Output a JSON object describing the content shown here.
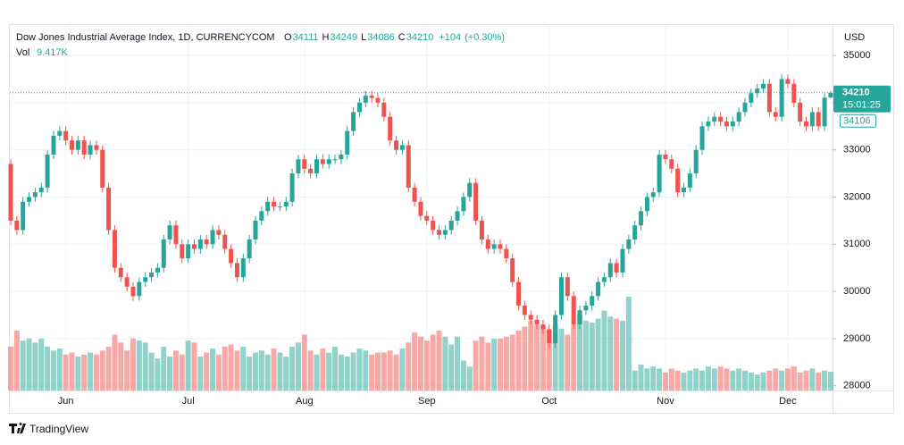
{
  "chart_data": {
    "type": "candlestick",
    "title": "Dow Jones Industrial Average Index, 1D, CURRENCYCOM",
    "ohlc_letters": [
      "O",
      "H",
      "L",
      "C"
    ],
    "change": {
      "value": 104,
      "label": "+104"
    },
    "change_pct": {
      "value": 0.3,
      "label": "(+0.30%)"
    },
    "volume_title": "Vol",
    "volume_label": "9.417K",
    "currency": "USD",
    "countdown": "15:01:25",
    "brand": "TradingView",
    "up_color": "#26a69a",
    "down_color": "#ef5350",
    "grid": true,
    "ylim": [
      27900,
      35570
    ],
    "yticks": [
      28000,
      29000,
      30000,
      31000,
      32000,
      33000,
      34000,
      35000
    ],
    "xticks": [
      {
        "value": 9,
        "label": "Jun"
      },
      {
        "value": 29,
        "label": "Jul"
      },
      {
        "value": 48,
        "label": "Aug"
      },
      {
        "value": 68,
        "label": "Sep"
      },
      {
        "value": 88,
        "label": "Oct"
      },
      {
        "value": 107,
        "label": "Nov"
      },
      {
        "value": 127,
        "label": "Dec"
      }
    ],
    "open": [
      32700,
      31500,
      31300,
      31900,
      32000,
      32100,
      32200,
      32900,
      33300,
      33400,
      33200,
      33000,
      33200,
      32900,
      33100,
      33000,
      32200,
      31300,
      30500,
      30300,
      30100,
      29900,
      30200,
      30300,
      30400,
      30500,
      31100,
      31400,
      31000,
      30700,
      31000,
      30900,
      31100,
      31000,
      31300,
      31200,
      30900,
      30600,
      30300,
      30700,
      31100,
      31500,
      31700,
      31900,
      31800,
      31800,
      31900,
      32500,
      32800,
      32600,
      32500,
      32800,
      32700,
      32800,
      32800,
      32900,
      33400,
      33800,
      34000,
      34150,
      34100,
      34000,
      33700,
      33200,
      33000,
      33100,
      32200,
      31900,
      31600,
      31500,
      31300,
      31200,
      31300,
      31500,
      31700,
      32000,
      32300,
      31500,
      31100,
      30900,
      31000,
      30900,
      30700,
      30200,
      29700,
      29500,
      29400,
      29300,
      29200,
      28900,
      29500,
      30300,
      29900,
      29300,
      29600,
      29700,
      29900,
      30200,
      30300,
      30600,
      30400,
      30900,
      31100,
      31400,
      31700,
      32000,
      32100,
      32900,
      32800,
      32600,
      32100,
      32200,
      32500,
      33000,
      33500,
      33600,
      33700,
      33600,
      33500,
      33600,
      33800,
      34000,
      34200,
      34300,
      34400,
      33800,
      33700,
      34500,
      34400,
      34000,
      33600,
      33500,
      33800,
      33500,
      34111
    ],
    "high": [
      32800,
      31600,
      32000,
      32100,
      32200,
      32300,
      33000,
      33400,
      33500,
      33500,
      33300,
      33300,
      33300,
      33200,
      33200,
      33100,
      32300,
      31400,
      30600,
      30400,
      30200,
      30300,
      30400,
      30500,
      30600,
      31200,
      31500,
      31500,
      31100,
      31100,
      31100,
      31200,
      31200,
      31400,
      31400,
      31300,
      31000,
      30700,
      30800,
      31200,
      31600,
      31800,
      32000,
      32000,
      31900,
      32000,
      32600,
      32900,
      32900,
      32700,
      32900,
      32900,
      32900,
      32900,
      33000,
      33500,
      33900,
      34100,
      34250,
      34250,
      34200,
      34100,
      33800,
      33300,
      33200,
      33200,
      32300,
      32000,
      31700,
      31600,
      31400,
      31400,
      31600,
      31800,
      32100,
      32400,
      32400,
      31600,
      31200,
      31100,
      31100,
      31000,
      30800,
      30300,
      29800,
      29600,
      29500,
      29400,
      29300,
      29600,
      30400,
      30400,
      30000,
      29700,
      29800,
      30000,
      30300,
      30400,
      30700,
      30700,
      31000,
      31200,
      31500,
      31800,
      32100,
      32200,
      33000,
      33000,
      32900,
      32700,
      32300,
      32600,
      33100,
      33600,
      33700,
      33800,
      33800,
      33700,
      33700,
      33900,
      34100,
      34300,
      34400,
      34500,
      34500,
      33900,
      34600,
      34600,
      34500,
      34100,
      33700,
      33900,
      33900,
      34200,
      34249
    ],
    "low": [
      31400,
      31200,
      31200,
      31800,
      31900,
      32000,
      32100,
      32800,
      33200,
      33100,
      32900,
      32900,
      32800,
      32800,
      32900,
      32100,
      31200,
      30400,
      30200,
      30000,
      29800,
      29800,
      30100,
      30200,
      30300,
      30400,
      31000,
      30900,
      30600,
      30600,
      30800,
      30800,
      30900,
      30900,
      31100,
      30800,
      30500,
      30200,
      30200,
      30600,
      31000,
      31400,
      31600,
      31700,
      31700,
      31700,
      31800,
      32400,
      32500,
      32400,
      32400,
      32600,
      32600,
      32700,
      32700,
      32800,
      33300,
      33700,
      33900,
      34000,
      33900,
      33600,
      33100,
      32900,
      32900,
      32100,
      31800,
      31500,
      31400,
      31200,
      31100,
      31100,
      31200,
      31400,
      31600,
      31900,
      31400,
      31000,
      30800,
      30800,
      30800,
      30600,
      30100,
      29600,
      29400,
      29300,
      29200,
      29100,
      28800,
      28800,
      29400,
      29800,
      29200,
      29200,
      29500,
      29600,
      29800,
      30100,
      30200,
      30300,
      30300,
      30800,
      31000,
      31300,
      31600,
      31900,
      32000,
      32700,
      32500,
      32000,
      32000,
      32100,
      32400,
      32900,
      33400,
      33500,
      33500,
      33400,
      33400,
      33500,
      33700,
      33900,
      34100,
      34200,
      33700,
      33600,
      33600,
      34300,
      33900,
      33500,
      33400,
      33400,
      33400,
      33400,
      34086
    ],
    "close": [
      31500,
      31300,
      31900,
      32000,
      32100,
      32200,
      32900,
      33300,
      33400,
      33200,
      33000,
      33200,
      32900,
      33100,
      33000,
      32200,
      31300,
      30500,
      30300,
      30100,
      29900,
      30200,
      30300,
      30400,
      30500,
      31100,
      31400,
      31000,
      30700,
      31000,
      30900,
      31100,
      31000,
      31300,
      31200,
      30900,
      30600,
      30300,
      30700,
      31100,
      31500,
      31700,
      31900,
      31800,
      31800,
      31900,
      32500,
      32800,
      32600,
      32500,
      32800,
      32700,
      32800,
      32800,
      32900,
      33400,
      33800,
      34000,
      34150,
      34100,
      34000,
      33700,
      33200,
      33000,
      33100,
      32200,
      31900,
      31600,
      31500,
      31300,
      31200,
      31300,
      31500,
      31700,
      32000,
      32300,
      31500,
      31100,
      30900,
      31000,
      30900,
      30700,
      30200,
      29700,
      29500,
      29400,
      29300,
      29200,
      28900,
      29500,
      30300,
      29900,
      29300,
      29600,
      29700,
      29900,
      30200,
      30300,
      30600,
      30400,
      30900,
      31100,
      31400,
      31700,
      32000,
      32100,
      32900,
      32800,
      32600,
      32100,
      32200,
      32500,
      33000,
      33500,
      33600,
      33700,
      33600,
      33500,
      33600,
      33800,
      34000,
      34200,
      34300,
      34400,
      33800,
      33700,
      34500,
      34400,
      34000,
      33600,
      33500,
      33800,
      33500,
      34106,
      34210
    ],
    "volume": [
      22000,
      30000,
      25000,
      26000,
      24000,
      26000,
      22000,
      20000,
      21000,
      18000,
      19000,
      17000,
      18000,
      19000,
      18000,
      20000,
      22000,
      28000,
      24000,
      20000,
      26000,
      25000,
      24000,
      19000,
      16000,
      22000,
      17000,
      20000,
      18000,
      25000,
      24000,
      17000,
      19000,
      21000,
      18000,
      22000,
      23000,
      20000,
      22000,
      17000,
      19000,
      20000,
      18000,
      21000,
      19000,
      17000,
      22000,
      24000,
      28000,
      20000,
      18000,
      21000,
      19000,
      22000,
      18000,
      17000,
      19000,
      21000,
      20000,
      18000,
      19000,
      19000,
      20000,
      18000,
      21000,
      24000,
      29000,
      27000,
      25000,
      28000,
      30000,
      27000,
      23000,
      27000,
      15000,
      12000,
      25000,
      27000,
      24000,
      26000,
      26000,
      27000,
      28000,
      30000,
      32000,
      35000,
      33000,
      32000,
      30000,
      33000,
      31000,
      28000,
      33000,
      38000,
      35000,
      34000,
      36000,
      40000,
      37000,
      36000,
      35000,
      47000,
      10000,
      13000,
      11000,
      12000,
      11000,
      9000,
      11000,
      10000,
      9000,
      10000,
      11000,
      10000,
      12000,
      11000,
      12000,
      11000,
      10000,
      11000,
      10000,
      9000,
      8000,
      9000,
      10000,
      11000,
      10000,
      11000,
      12000,
      9000,
      10000,
      11000,
      9000,
      10000,
      9417
    ]
  }
}
